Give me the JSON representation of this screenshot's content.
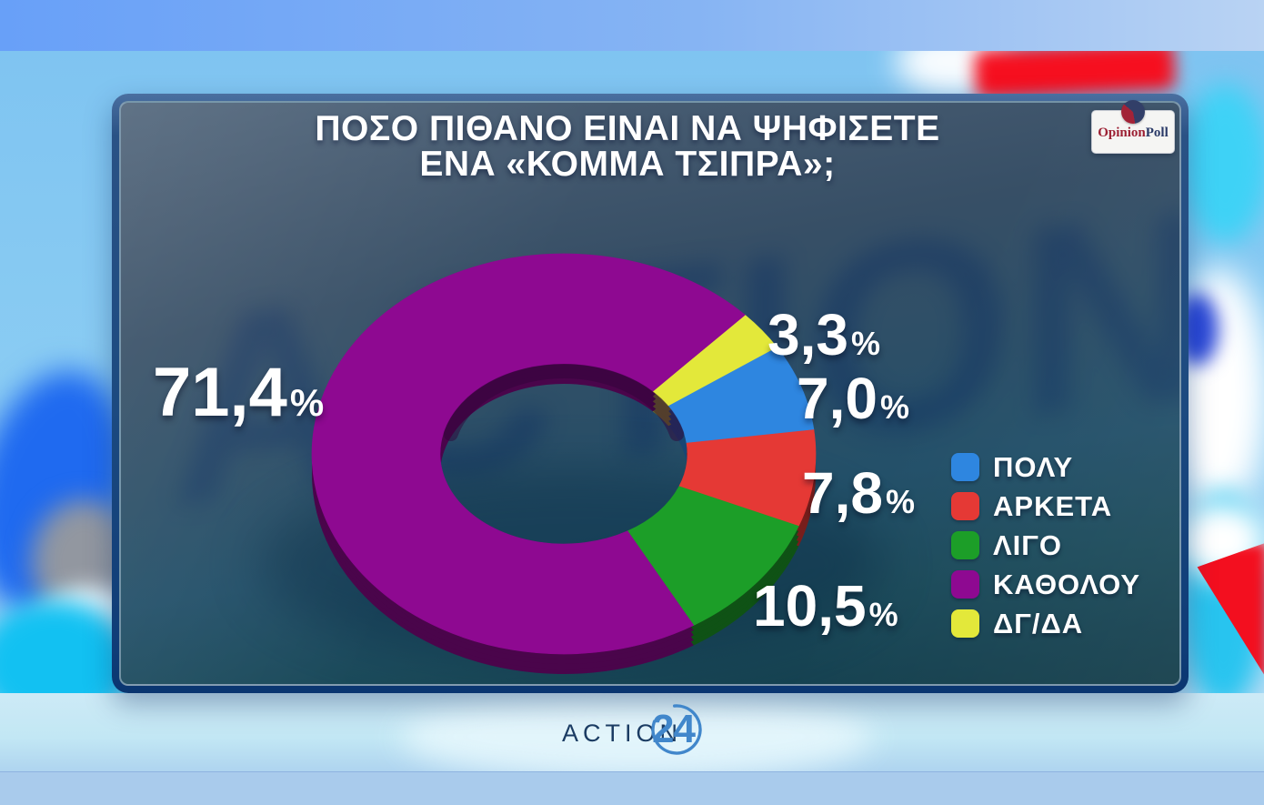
{
  "title": {
    "line1": "ΠΟΣΟ ΠΙΘΑΝΟ ΕΙΝΑΙ ΝΑ ΨΗΦΙΣΕΤΕ",
    "line2": "ΕΝΑ «ΚΟΜΜΑ ΤΣΙΠΡΑ»;"
  },
  "opinionpoll_logo": {
    "part1": "Opinion",
    "part2": "Poll"
  },
  "action24_logo": {
    "word": "ACTION",
    "number": "24"
  },
  "watermark_text": "ACTION",
  "chart_data": {
    "type": "pie",
    "donut": true,
    "title": "ΠΟΣΟ ΠΙΘΑΝΟ ΕΙΝΑΙ ΝΑ ΨΗΦΙΣΕΤΕ ΕΝΑ «ΚΟΜΜΑ ΤΣΙΠΡΑ»;",
    "unit": "%",
    "decimal_separator": ",",
    "legend_position": "right",
    "segments": [
      {
        "label": "ΠΟΛΥ",
        "value": 7.0,
        "display": "7,0",
        "color": "#2e86e0"
      },
      {
        "label": "ΑΡΚΕΤΑ",
        "value": 7.8,
        "display": "7,8",
        "color": "#e53935"
      },
      {
        "label": "ΛΙΓΟ",
        "value": 10.5,
        "display": "10,5",
        "color": "#1c9e28"
      },
      {
        "label": "ΚΑΘΟΛΟΥ",
        "value": 71.4,
        "display": "71,4",
        "color": "#8e0991"
      },
      {
        "label": "ΔΓ/ΔΑ",
        "value": 3.3,
        "display": "3,3",
        "color": "#e3e83a"
      }
    ]
  }
}
